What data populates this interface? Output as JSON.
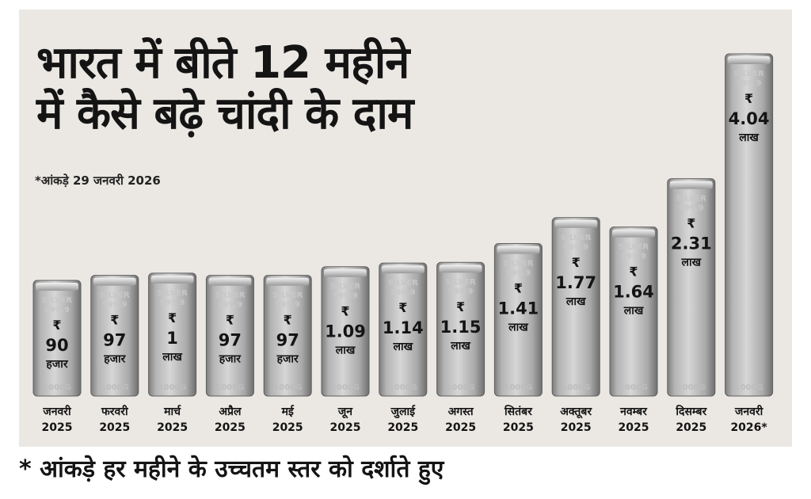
{
  "title_line1": "भारत में बीते 12 महीने",
  "title_line2": "में कैसे बढ़े चांदी के दाम",
  "note": "*आंकड़े 29 जनवरी 2026",
  "footer": "* आंकड़े हर महीने के उच्चतम स्तर को दर्शाते हुए",
  "colors": {
    "bar_light": "#dcdcdc",
    "bar_mid": "#a9a9a9",
    "bar_dark": "#7d7d7d",
    "text": "#141414",
    "background": "#ebe8e3"
  },
  "chart_data": {
    "type": "bar",
    "currency_symbol": "₹",
    "bar_engraving": [
      "SILVER",
      "999.9",
      "1000G"
    ],
    "categories": [
      {
        "month": "जनवरी",
        "year": "2025"
      },
      {
        "month": "फरवरी",
        "year": "2025"
      },
      {
        "month": "मार्च",
        "year": "2025"
      },
      {
        "month": "अप्रैल",
        "year": "2025"
      },
      {
        "month": "मई",
        "year": "2025"
      },
      {
        "month": "जून",
        "year": "2025"
      },
      {
        "month": "जुलाई",
        "year": "2025"
      },
      {
        "month": "अगस्त",
        "year": "2025"
      },
      {
        "month": "सितंबर",
        "year": "2025"
      },
      {
        "month": "अक्तूबर",
        "year": "2025"
      },
      {
        "month": "नवम्बर",
        "year": "2025"
      },
      {
        "month": "दिसम्बर",
        "year": "2025"
      },
      {
        "month": "जनवरी",
        "year": "2026*"
      }
    ],
    "values": [
      90000,
      97000,
      100000,
      97000,
      97000,
      109000,
      114000,
      115000,
      141000,
      177000,
      164000,
      231000,
      404000
    ],
    "value_labels": [
      {
        "num": "90",
        "unit": "हजार"
      },
      {
        "num": "97",
        "unit": "हजार"
      },
      {
        "num": "1",
        "unit": "लाख"
      },
      {
        "num": "97",
        "unit": "हजार"
      },
      {
        "num": "97",
        "unit": "हजार"
      },
      {
        "num": "1.09",
        "unit": "लाख"
      },
      {
        "num": "1.14",
        "unit": "लाख"
      },
      {
        "num": "1.15",
        "unit": "लाख"
      },
      {
        "num": "1.41",
        "unit": "लाख"
      },
      {
        "num": "1.77",
        "unit": "लाख"
      },
      {
        "num": "1.64",
        "unit": "लाख"
      },
      {
        "num": "2.31",
        "unit": "लाख"
      },
      {
        "num": "4.04",
        "unit": "लाख"
      }
    ]
  }
}
